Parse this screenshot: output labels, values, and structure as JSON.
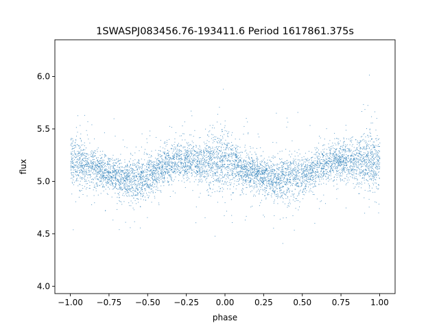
{
  "chart_data": {
    "type": "scatter",
    "title": "1SWASPJ083456.76-193411.6 Period 1617861.375s",
    "xlabel": "phase",
    "ylabel": "flux",
    "xlim": [
      -1.1,
      1.1
    ],
    "ylim": [
      3.93,
      6.35
    ],
    "x_ticks": [
      -1.0,
      -0.75,
      -0.5,
      -0.25,
      0.0,
      0.25,
      0.5,
      0.75,
      1.0
    ],
    "x_tick_labels": [
      "−1.00",
      "−0.75",
      "−0.50",
      "−0.25",
      "0.00",
      "0.25",
      "0.50",
      "0.75",
      "1.00"
    ],
    "y_ticks": [
      4.0,
      4.5,
      5.0,
      5.5,
      6.0
    ],
    "y_tick_labels": [
      "4.0",
      "4.5",
      "5.0",
      "5.5",
      "6.0"
    ],
    "grid": false,
    "legend": "none",
    "point_color": "#1f77b4",
    "series": [
      {
        "x": [
          -1.0,
          -0.95,
          -0.9,
          -0.85,
          -0.8,
          -0.75,
          -0.7,
          -0.65,
          -0.6,
          -0.55,
          -0.5,
          -0.45,
          -0.4,
          -0.35,
          -0.3,
          -0.25,
          -0.2,
          -0.15,
          -0.1,
          -0.05,
          0.0,
          0.05,
          0.1,
          0.15,
          0.2,
          0.25,
          0.3,
          0.35,
          0.4,
          0.45,
          0.5,
          0.55,
          0.6,
          0.65,
          0.7,
          0.75,
          0.8,
          0.85,
          0.9,
          0.95,
          1.0
        ],
        "y": [
          5.18,
          5.2,
          5.17,
          5.13,
          5.1,
          5.08,
          5.05,
          5.03,
          5.02,
          5.03,
          5.06,
          5.1,
          5.14,
          5.17,
          5.19,
          5.2,
          5.19,
          5.17,
          5.18,
          5.2,
          5.2,
          5.17,
          5.13,
          5.1,
          5.08,
          5.05,
          5.03,
          5.02,
          5.03,
          5.04,
          5.06,
          5.1,
          5.14,
          5.17,
          5.19,
          5.2,
          5.2,
          5.19,
          5.18,
          5.19,
          5.18
        ],
        "spread": [
          0.22,
          0.24,
          0.19,
          0.16,
          0.15,
          0.15,
          0.16,
          0.18,
          0.2,
          0.2,
          0.18,
          0.16,
          0.15,
          0.15,
          0.15,
          0.16,
          0.18,
          0.2,
          0.24,
          0.25,
          0.24,
          0.2,
          0.16,
          0.15,
          0.15,
          0.15,
          0.16,
          0.18,
          0.2,
          0.2,
          0.18,
          0.16,
          0.15,
          0.15,
          0.15,
          0.16,
          0.18,
          0.2,
          0.24,
          0.25,
          0.22
        ]
      }
    ]
  }
}
